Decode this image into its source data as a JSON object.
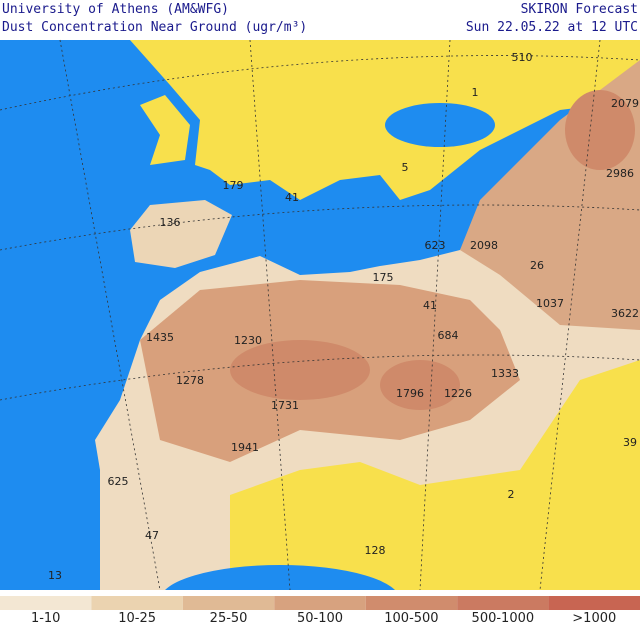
{
  "header": {
    "left": [
      "University of Athens (AM&WFG)",
      "Dust Concentration Near Ground (ugr/m³)"
    ],
    "right": [
      "SKIRON Forecast",
      "Sun 22.05.22 at 12 UTC"
    ]
  },
  "map_labels": [
    "510",
    "2079",
    "1",
    "2986",
    "179",
    "41",
    "5",
    "136",
    "623",
    "2098",
    "26",
    "175",
    "41",
    "1037",
    "3622",
    "1435",
    "1230",
    "684",
    "1278",
    "1333",
    "1796",
    "1226",
    "1731",
    "1941",
    "39",
    "625",
    "2",
    "47",
    "128",
    "13"
  ],
  "legend": [
    {
      "label": "1-10",
      "color": "#f3e7d3"
    },
    {
      "label": "10-25",
      "color": "#ebd3b0"
    },
    {
      "label": "25-50",
      "color": "#e0ba95"
    },
    {
      "label": "50-100",
      "color": "#d7a27f"
    },
    {
      "label": "100-500",
      "color": "#d08c6d"
    },
    {
      "label": "500-1000",
      "color": "#cb7a61"
    },
    {
      "label": ">1000",
      "color": "#c86552"
    }
  ]
}
